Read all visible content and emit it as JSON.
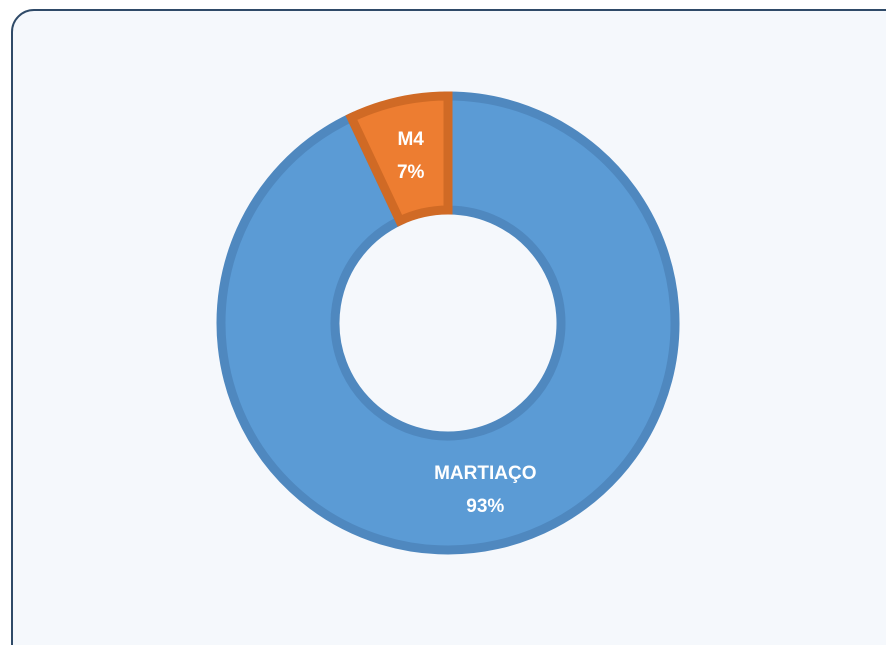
{
  "chart_data": {
    "type": "donut",
    "categories": [
      "MARTIAÇO",
      "M4"
    ],
    "values": [
      93,
      7
    ],
    "value_labels": [
      "93%",
      "7%"
    ],
    "colors": [
      "#5b9bd5",
      "#ed7d31"
    ],
    "edge_colors": [
      "#4f88bf",
      "#d06a25"
    ]
  }
}
